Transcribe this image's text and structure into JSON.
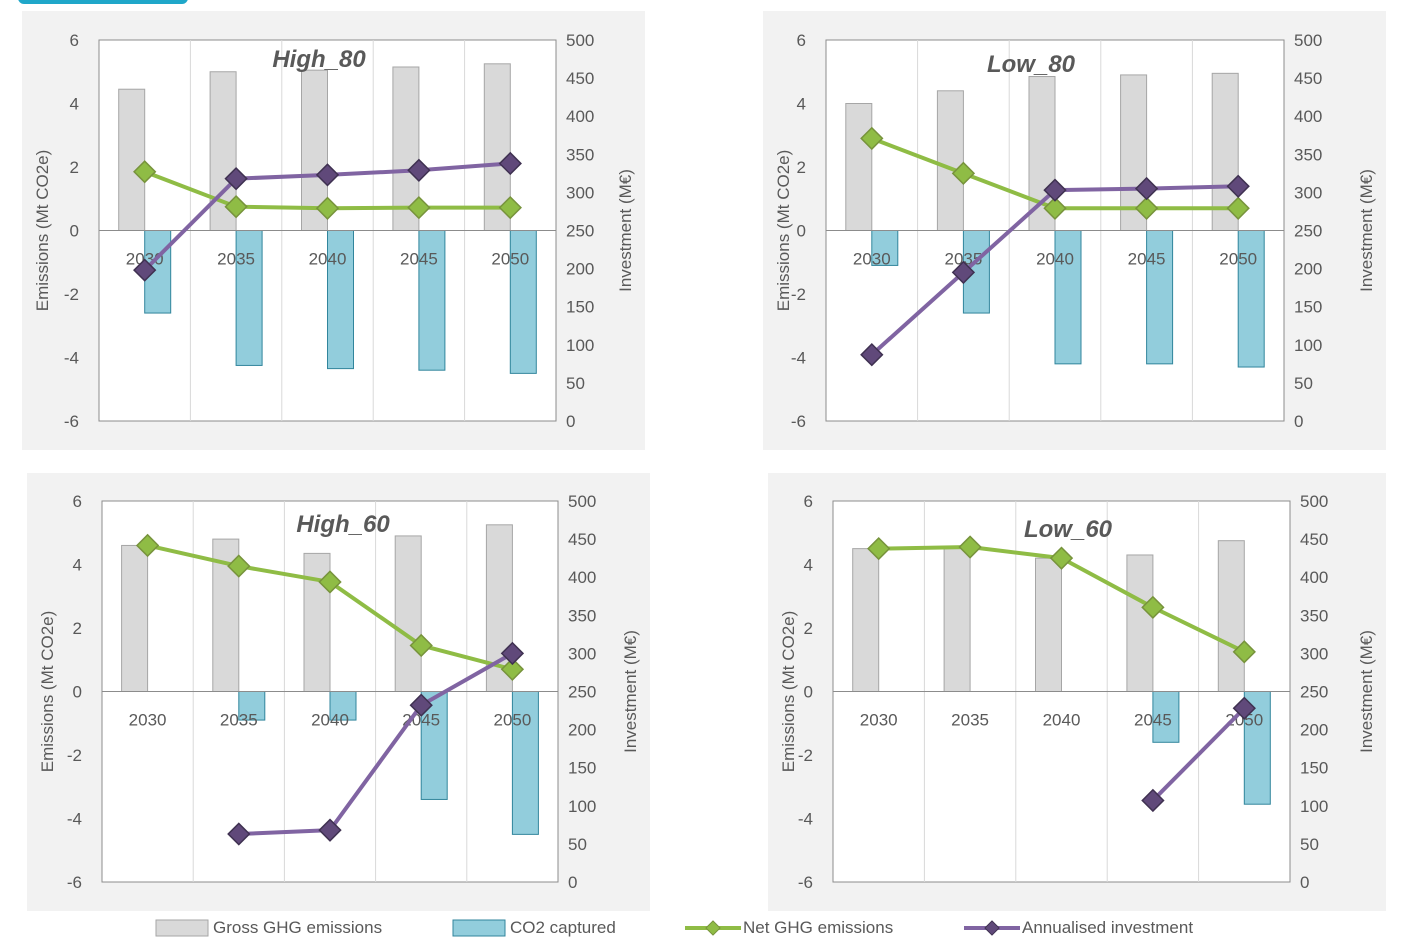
{
  "colors": {
    "panel_bg": "#f2f2f2",
    "plot_bg": "#ffffff",
    "grid": "#d9d9d9",
    "axis": "#8c8c8c",
    "text": "#595959",
    "title": "#595959",
    "gross_fill": "#d9d9d9",
    "gross_stroke": "#a6a6a6",
    "captured_fill": "#92cddc",
    "captured_stroke": "#31859c",
    "net_line": "#8fbc45",
    "net_marker_fill": "#8fbc45",
    "net_marker_stroke": "#77933c",
    "inv_line": "#8064a2",
    "inv_marker_fill": "#60497a",
    "inv_marker_stroke": "#3f3151",
    "tab": "#1fa7c9"
  },
  "legend": {
    "gross": "Gross GHG emissions",
    "captured": "CO2 captured",
    "net": "Net GHG emissions",
    "investment": "Annualised investment"
  },
  "chart_data": [
    {
      "type": "bar",
      "title": "High_80",
      "categories": [
        "2030",
        "2035",
        "2040",
        "2045",
        "2050"
      ],
      "ylabel": "Emissions (Mt CO2e)",
      "y2label": "Investment (M€)",
      "ylim": [
        -6,
        6
      ],
      "y2lim": [
        0,
        500
      ],
      "yticks": [
        "-6",
        "-4",
        "-2",
        "0",
        "2",
        "4",
        "6"
      ],
      "y2ticks": [
        "0",
        "50",
        "100",
        "150",
        "200",
        "250",
        "300",
        "350",
        "400",
        "450",
        "500"
      ],
      "series": [
        {
          "name": "Gross GHG emissions",
          "kind": "bar",
          "axis": "left",
          "values": [
            4.45,
            5.0,
            5.05,
            5.15,
            5.25
          ]
        },
        {
          "name": "CO2 captured",
          "kind": "bar",
          "axis": "left",
          "values": [
            -2.6,
            -4.25,
            -4.35,
            -4.4,
            -4.5
          ]
        },
        {
          "name": "Net GHG emissions",
          "kind": "line",
          "axis": "left",
          "values": [
            1.85,
            0.75,
            0.7,
            0.72,
            0.72
          ]
        },
        {
          "name": "Annualised investment",
          "kind": "line",
          "axis": "right",
          "values": [
            198,
            318,
            323,
            329,
            338
          ]
        }
      ]
    },
    {
      "type": "bar",
      "title": "Low_80",
      "categories": [
        "2030",
        "2035",
        "2040",
        "2045",
        "2050"
      ],
      "ylabel": "Emissions (Mt CO2e)",
      "y2label": "Investment (M€)",
      "ylim": [
        -6,
        6
      ],
      "y2lim": [
        0,
        500
      ],
      "yticks": [
        "-6",
        "-4",
        "-2",
        "0",
        "2",
        "4",
        "6"
      ],
      "y2ticks": [
        "0",
        "50",
        "100",
        "150",
        "200",
        "250",
        "300",
        "350",
        "400",
        "450",
        "500"
      ],
      "series": [
        {
          "name": "Gross GHG emissions",
          "kind": "bar",
          "axis": "left",
          "values": [
            4.0,
            4.4,
            4.85,
            4.9,
            4.95
          ]
        },
        {
          "name": "CO2 captured",
          "kind": "bar",
          "axis": "left",
          "values": [
            -1.1,
            -2.6,
            -4.2,
            -4.2,
            -4.3
          ]
        },
        {
          "name": "Net GHG emissions",
          "kind": "line",
          "axis": "left",
          "values": [
            2.9,
            1.8,
            0.7,
            0.7,
            0.7
          ]
        },
        {
          "name": "Annualised investment",
          "kind": "line",
          "axis": "right",
          "values": [
            87,
            195,
            303,
            305,
            308
          ]
        }
      ]
    },
    {
      "type": "bar",
      "title": "High_60",
      "categories": [
        "2030",
        "2035",
        "2040",
        "2045",
        "2050"
      ],
      "ylabel": "Emissions (Mt CO2e)",
      "y2label": "Investment (M€)",
      "ylim": [
        -6,
        6
      ],
      "y2lim": [
        0,
        500
      ],
      "yticks": [
        "-6",
        "-4",
        "-2",
        "0",
        "2",
        "4",
        "6"
      ],
      "y2ticks": [
        "0",
        "50",
        "100",
        "150",
        "200",
        "250",
        "300",
        "350",
        "400",
        "450",
        "500"
      ],
      "series": [
        {
          "name": "Gross GHG emissions",
          "kind": "bar",
          "axis": "left",
          "values": [
            4.6,
            4.8,
            4.35,
            4.9,
            5.25
          ]
        },
        {
          "name": "CO2 captured",
          "kind": "bar",
          "axis": "left",
          "values": [
            0,
            -0.9,
            -0.9,
            -3.4,
            -4.5
          ]
        },
        {
          "name": "Net GHG emissions",
          "kind": "line",
          "axis": "left",
          "values": [
            4.6,
            3.95,
            3.45,
            1.45,
            0.7
          ]
        },
        {
          "name": "Annualised investment",
          "kind": "line",
          "axis": "right",
          "values": [
            null,
            63,
            68,
            232,
            300
          ]
        }
      ]
    },
    {
      "type": "bar",
      "title": "Low_60",
      "categories": [
        "2030",
        "2035",
        "2040",
        "2045",
        "2050"
      ],
      "ylabel": "Emissions (Mt CO2e)",
      "y2label": "Investment (M€)",
      "ylim": [
        -6,
        6
      ],
      "y2lim": [
        0,
        500
      ],
      "yticks": [
        "-6",
        "-4",
        "-2",
        "0",
        "2",
        "4",
        "6"
      ],
      "y2ticks": [
        "0",
        "50",
        "100",
        "150",
        "200",
        "250",
        "300",
        "350",
        "400",
        "450",
        "500"
      ],
      "series": [
        {
          "name": "Gross GHG emissions",
          "kind": "bar",
          "axis": "left",
          "values": [
            4.5,
            4.55,
            4.2,
            4.3,
            4.75
          ]
        },
        {
          "name": "CO2 captured",
          "kind": "bar",
          "axis": "left",
          "values": [
            0,
            0,
            0,
            -1.6,
            -3.55
          ]
        },
        {
          "name": "Net GHG emissions",
          "kind": "line",
          "axis": "left",
          "values": [
            4.5,
            4.55,
            4.2,
            2.65,
            1.25
          ]
        },
        {
          "name": "Annualised investment",
          "kind": "line",
          "axis": "right",
          "values": [
            null,
            null,
            null,
            107,
            228
          ]
        }
      ]
    }
  ]
}
